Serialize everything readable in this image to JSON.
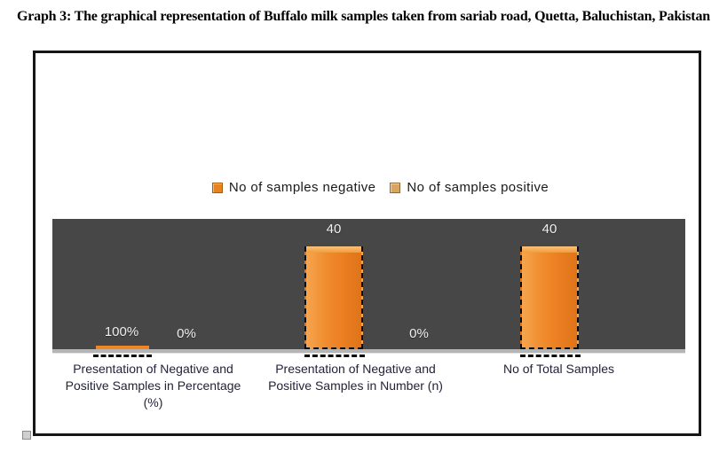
{
  "title": "Graph 3: The graphical representation of Buffalo milk samples taken from sariab road, Quetta, Baluchistan, Pakistan",
  "legend": {
    "items": [
      {
        "label": "No of samples negative",
        "color": "#e8821e"
      },
      {
        "label": "No of samples positive",
        "color": "#d9a55f"
      }
    ]
  },
  "chart_data": {
    "type": "bar",
    "title": "Graph 3: The graphical representation of Buffalo milk samples taken from sariab road, Quetta, Baluchistan, Pakistan",
    "categories": [
      "Presentation of Negative and Positive Samples in Percentage (%)",
      "Presentation of Negative and Positive Samples in Number (n)",
      "No of Total Samples"
    ],
    "series": [
      {
        "name": "No of samples negative",
        "values": [
          1,
          40,
          40
        ],
        "data_labels": [
          "100%",
          "40",
          "40"
        ]
      },
      {
        "name": "No of samples positive",
        "values": [
          0,
          0,
          null
        ],
        "data_labels": [
          "0%",
          "0%",
          null
        ]
      }
    ],
    "ylim": [
      0,
      50
    ],
    "grid": false,
    "y_axis_visible": false,
    "legend_position": "top-center",
    "plot_background": "#474747",
    "bar_color": "#ee8527"
  }
}
